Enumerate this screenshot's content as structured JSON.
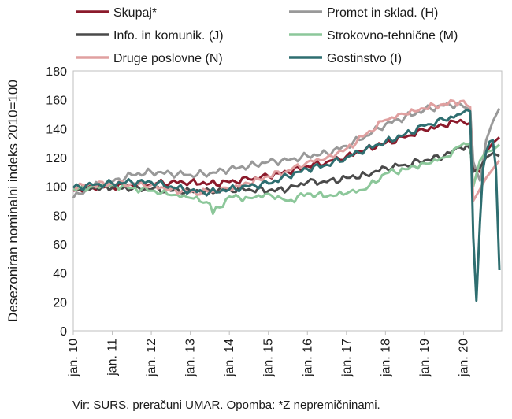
{
  "chart_data": {
    "type": "line",
    "ylabel": "Desezoniran nominalni indeks 2010=100",
    "ylim": [
      0,
      180
    ],
    "yticks": [
      0,
      20,
      40,
      60,
      80,
      100,
      120,
      140,
      160,
      180
    ],
    "xticks": [
      "jan. 10",
      "jan. 11",
      "jan. 12",
      "jan. 13",
      "jan. 14",
      "jan. 15",
      "jan. 16",
      "jan. 17",
      "jan. 18",
      "jan. 19",
      "jan. 20"
    ],
    "x_start": "2010-01",
    "frequency": "monthly",
    "legend_position": "top",
    "grid": false,
    "series": [
      {
        "name": "Skupaj*",
        "color": "#8b1a2b",
        "width": 3,
        "points": [
          [
            2010.0,
            97
          ],
          [
            2010.5,
            99
          ],
          [
            2011.0,
            100
          ],
          [
            2011.5,
            101
          ],
          [
            2012.0,
            102
          ],
          [
            2012.5,
            103
          ],
          [
            2013.0,
            103
          ],
          [
            2013.5,
            102
          ],
          [
            2014.0,
            103
          ],
          [
            2014.5,
            105
          ],
          [
            2015.0,
            107
          ],
          [
            2015.5,
            110
          ],
          [
            2016.0,
            114
          ],
          [
            2016.5,
            117
          ],
          [
            2017.0,
            121
          ],
          [
            2017.5,
            126
          ],
          [
            2018.0,
            130
          ],
          [
            2018.5,
            134
          ],
          [
            2019.0,
            139
          ],
          [
            2019.5,
            142
          ],
          [
            2019.92,
            146
          ],
          [
            2020.17,
            144
          ],
          [
            2020.25,
            113
          ],
          [
            2020.42,
            110
          ],
          [
            2020.58,
            124
          ],
          [
            2020.75,
            130
          ],
          [
            2020.92,
            134
          ]
        ]
      },
      {
        "name": "Promet in sklad. (H)",
        "color": "#999999",
        "width": 3,
        "points": [
          [
            2010.0,
            92
          ],
          [
            2010.5,
            100
          ],
          [
            2011.0,
            103
          ],
          [
            2011.5,
            108
          ],
          [
            2012.0,
            110
          ],
          [
            2012.5,
            109
          ],
          [
            2013.0,
            108
          ],
          [
            2013.5,
            109
          ],
          [
            2014.0,
            112
          ],
          [
            2014.5,
            114
          ],
          [
            2015.0,
            117
          ],
          [
            2015.5,
            118
          ],
          [
            2016.0,
            121
          ],
          [
            2016.5,
            123
          ],
          [
            2017.0,
            128
          ],
          [
            2017.5,
            135
          ],
          [
            2018.0,
            143
          ],
          [
            2018.5,
            148
          ],
          [
            2019.0,
            153
          ],
          [
            2019.5,
            156
          ],
          [
            2019.92,
            157
          ],
          [
            2020.17,
            153
          ],
          [
            2020.25,
            117
          ],
          [
            2020.42,
            104
          ],
          [
            2020.58,
            132
          ],
          [
            2020.75,
            145
          ],
          [
            2020.92,
            154
          ]
        ]
      },
      {
        "name": "Info. in komunik. (J)",
        "color": "#4a4a4a",
        "width": 3,
        "points": [
          [
            2010.0,
            100
          ],
          [
            2010.5,
            99
          ],
          [
            2011.0,
            99
          ],
          [
            2011.5,
            98
          ],
          [
            2012.0,
            98
          ],
          [
            2012.5,
            97
          ],
          [
            2013.0,
            97
          ],
          [
            2013.5,
            97
          ],
          [
            2014.0,
            98
          ],
          [
            2014.5,
            98
          ],
          [
            2015.0,
            97
          ],
          [
            2015.5,
            98
          ],
          [
            2016.0,
            103
          ],
          [
            2016.5,
            103
          ],
          [
            2017.0,
            106
          ],
          [
            2017.5,
            108
          ],
          [
            2018.0,
            113
          ],
          [
            2018.5,
            115
          ],
          [
            2019.0,
            118
          ],
          [
            2019.5,
            121
          ],
          [
            2019.92,
            127
          ],
          [
            2020.17,
            126
          ],
          [
            2020.25,
            110
          ],
          [
            2020.42,
            113
          ],
          [
            2020.58,
            120
          ],
          [
            2020.75,
            123
          ],
          [
            2020.92,
            121
          ]
        ]
      },
      {
        "name": "Strokovno-tehnične (M)",
        "color": "#8cc79a",
        "width": 3,
        "points": [
          [
            2010.0,
            98
          ],
          [
            2010.5,
            100
          ],
          [
            2011.0,
            101
          ],
          [
            2011.5,
            99
          ],
          [
            2012.0,
            97
          ],
          [
            2012.5,
            94
          ],
          [
            2013.0,
            92
          ],
          [
            2013.5,
            88
          ],
          [
            2013.58,
            81
          ],
          [
            2014.0,
            93
          ],
          [
            2014.5,
            92
          ],
          [
            2015.0,
            95
          ],
          [
            2015.5,
            90
          ],
          [
            2016.0,
            95
          ],
          [
            2016.5,
            93
          ],
          [
            2017.0,
            95
          ],
          [
            2017.5,
            98
          ],
          [
            2018.0,
            109
          ],
          [
            2018.5,
            112
          ],
          [
            2019.0,
            116
          ],
          [
            2019.5,
            120
          ],
          [
            2019.92,
            128
          ],
          [
            2020.17,
            130
          ],
          [
            2020.25,
            100
          ],
          [
            2020.42,
            118
          ],
          [
            2020.58,
            124
          ],
          [
            2020.75,
            125
          ],
          [
            2020.92,
            129
          ]
        ]
      },
      {
        "name": "Druge poslovne (N)",
        "color": "#e0a0a0",
        "width": 3,
        "points": [
          [
            2010.0,
            100
          ],
          [
            2010.5,
            101
          ],
          [
            2011.0,
            102
          ],
          [
            2011.5,
            102
          ],
          [
            2012.0,
            101
          ],
          [
            2012.5,
            98
          ],
          [
            2013.0,
            96
          ],
          [
            2013.5,
            96
          ],
          [
            2014.0,
            98
          ],
          [
            2014.5,
            102
          ],
          [
            2015.0,
            107
          ],
          [
            2015.5,
            111
          ],
          [
            2016.0,
            117
          ],
          [
            2016.5,
            120
          ],
          [
            2017.0,
            126
          ],
          [
            2017.5,
            136
          ],
          [
            2018.0,
            146
          ],
          [
            2018.5,
            150
          ],
          [
            2019.0,
            154
          ],
          [
            2019.5,
            157
          ],
          [
            2019.92,
            159
          ],
          [
            2020.17,
            155
          ],
          [
            2020.25,
            90
          ],
          [
            2020.42,
            98
          ],
          [
            2020.58,
            106
          ],
          [
            2020.75,
            112
          ],
          [
            2020.92,
            118
          ]
        ]
      },
      {
        "name": "Gostinstvo (I)",
        "color": "#2e6e70",
        "width": 3,
        "points": [
          [
            2010.0,
            99
          ],
          [
            2010.5,
            101
          ],
          [
            2011.0,
            102
          ],
          [
            2011.5,
            103
          ],
          [
            2012.0,
            103
          ],
          [
            2012.5,
            100
          ],
          [
            2013.0,
            97
          ],
          [
            2013.5,
            96
          ],
          [
            2014.0,
            98
          ],
          [
            2014.5,
            100
          ],
          [
            2015.0,
            102
          ],
          [
            2015.5,
            107
          ],
          [
            2016.0,
            112
          ],
          [
            2016.5,
            115
          ],
          [
            2017.0,
            120
          ],
          [
            2017.5,
            126
          ],
          [
            2018.0,
            131
          ],
          [
            2018.5,
            136
          ],
          [
            2019.0,
            142
          ],
          [
            2019.5,
            146
          ],
          [
            2019.92,
            150
          ],
          [
            2020.08,
            153
          ],
          [
            2020.17,
            152
          ],
          [
            2020.25,
            65
          ],
          [
            2020.33,
            21
          ],
          [
            2020.42,
            75
          ],
          [
            2020.5,
            112
          ],
          [
            2020.58,
            124
          ],
          [
            2020.67,
            131
          ],
          [
            2020.75,
            132
          ],
          [
            2020.83,
            112
          ],
          [
            2020.92,
            42
          ]
        ]
      }
    ]
  },
  "source_note": "Vir: SURS, preračuni UMAR. Opomba: *Z nepremičninami."
}
